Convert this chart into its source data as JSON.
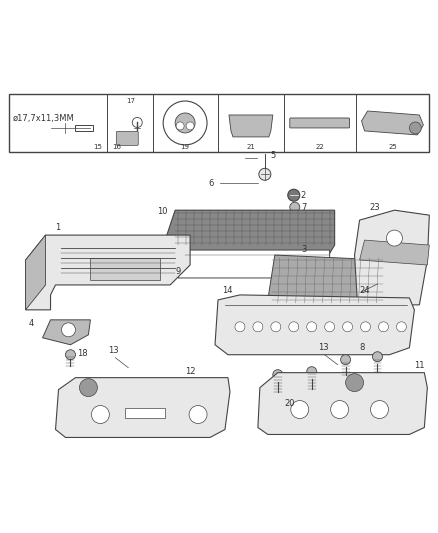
{
  "bg_color": "#ffffff",
  "fig_width": 4.38,
  "fig_height": 5.33,
  "dpi": 100,
  "lc": "#444444",
  "tc": "#333333",
  "pc": "#e8e8e8",
  "dc": "#bbbbbb",
  "fs_label": 7,
  "fs_small": 6,
  "fs_tiny": 5
}
